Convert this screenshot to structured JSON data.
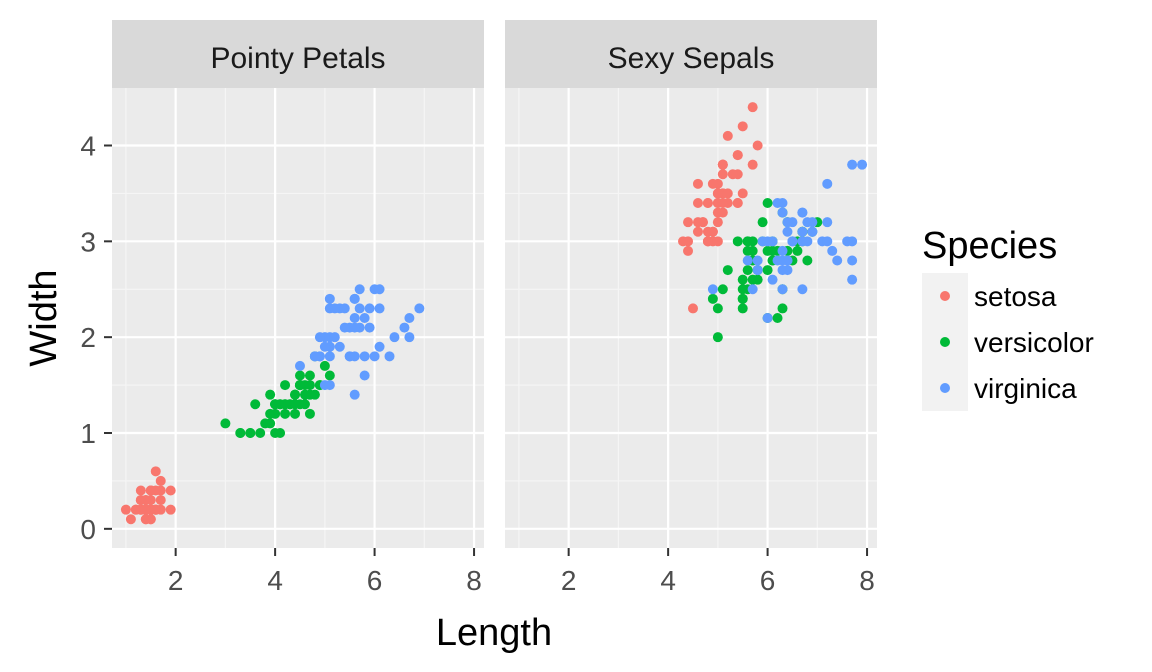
{
  "chart_data": {
    "type": "scatter",
    "xlabel": "Length",
    "ylabel": "Width",
    "xlim": [
      0.72,
      8.2
    ],
    "ylim": [
      -0.2,
      4.6
    ],
    "x_ticks": [
      2,
      4,
      6,
      8
    ],
    "y_ticks": [
      0,
      1,
      2,
      3,
      4
    ],
    "grid": true,
    "legend": {
      "title": "Species",
      "position": "right",
      "entries": [
        {
          "label": "setosa",
          "color": "#F8766D"
        },
        {
          "label": "versicolor",
          "color": "#00BA38"
        },
        {
          "label": "virginica",
          "color": "#619CFF"
        }
      ]
    },
    "panels": [
      {
        "label": "Pointy Petals",
        "series": [
          {
            "name": "setosa",
            "x": [
              1.4,
              1.4,
              1.3,
              1.5,
              1.4,
              1.7,
              1.4,
              1.5,
              1.4,
              1.5,
              1.5,
              1.6,
              1.4,
              1.1,
              1.2,
              1.5,
              1.3,
              1.4,
              1.7,
              1.5,
              1.7,
              1.5,
              1.0,
              1.7,
              1.9,
              1.6,
              1.6,
              1.5,
              1.4,
              1.6,
              1.6,
              1.5,
              1.5,
              1.4,
              1.5,
              1.2,
              1.3,
              1.4,
              1.3,
              1.5,
              1.3,
              1.3,
              1.3,
              1.6,
              1.9,
              1.4,
              1.6,
              1.4,
              1.5,
              1.4
            ],
            "y": [
              0.2,
              0.2,
              0.2,
              0.2,
              0.2,
              0.4,
              0.3,
              0.2,
              0.2,
              0.1,
              0.2,
              0.2,
              0.1,
              0.1,
              0.2,
              0.4,
              0.4,
              0.3,
              0.3,
              0.3,
              0.2,
              0.4,
              0.2,
              0.5,
              0.2,
              0.2,
              0.4,
              0.2,
              0.2,
              0.2,
              0.2,
              0.4,
              0.1,
              0.2,
              0.2,
              0.2,
              0.2,
              0.1,
              0.2,
              0.2,
              0.3,
              0.3,
              0.2,
              0.6,
              0.4,
              0.3,
              0.2,
              0.2,
              0.2,
              0.2
            ]
          },
          {
            "name": "versicolor",
            "x": [
              4.7,
              4.5,
              4.9,
              4.0,
              4.6,
              4.5,
              4.7,
              3.3,
              4.6,
              3.9,
              3.5,
              4.2,
              4.0,
              4.7,
              3.6,
              4.4,
              4.5,
              4.1,
              4.5,
              3.9,
              4.8,
              4.0,
              4.9,
              4.7,
              4.3,
              4.4,
              4.8,
              5.0,
              4.5,
              3.5,
              3.8,
              3.7,
              3.9,
              5.1,
              4.5,
              4.5,
              4.7,
              4.4,
              4.1,
              4.0,
              4.4,
              4.6,
              4.0,
              3.3,
              4.2,
              4.2,
              4.2,
              4.3,
              3.0,
              4.1
            ],
            "y": [
              1.4,
              1.5,
              1.5,
              1.3,
              1.5,
              1.3,
              1.6,
              1.0,
              1.3,
              1.4,
              1.0,
              1.5,
              1.0,
              1.4,
              1.3,
              1.4,
              1.5,
              1.0,
              1.5,
              1.1,
              1.8,
              1.3,
              1.5,
              1.2,
              1.3,
              1.4,
              1.4,
              1.7,
              1.5,
              1.0,
              1.1,
              1.0,
              1.2,
              1.6,
              1.5,
              1.6,
              1.5,
              1.3,
              1.3,
              1.3,
              1.2,
              1.4,
              1.2,
              1.0,
              1.3,
              1.2,
              1.3,
              1.3,
              1.1,
              1.3
            ]
          },
          {
            "name": "virginica",
            "x": [
              6.0,
              5.1,
              5.9,
              5.6,
              5.8,
              6.6,
              4.5,
              6.3,
              5.8,
              6.1,
              5.1,
              5.3,
              5.5,
              5.0,
              5.1,
              5.3,
              5.5,
              6.7,
              6.9,
              5.0,
              5.7,
              4.9,
              6.7,
              4.9,
              5.7,
              6.0,
              4.8,
              4.9,
              5.6,
              5.8,
              6.1,
              6.4,
              5.6,
              5.1,
              5.6,
              6.1,
              5.6,
              5.5,
              4.8,
              5.4,
              5.6,
              5.1,
              5.1,
              5.9,
              5.7,
              5.2,
              5.0,
              5.2,
              5.4,
              5.1
            ],
            "y": [
              2.5,
              1.9,
              2.1,
              1.8,
              2.2,
              2.1,
              1.7,
              1.8,
              1.8,
              2.5,
              2.0,
              1.9,
              2.1,
              2.0,
              2.4,
              2.3,
              1.8,
              2.2,
              2.3,
              1.5,
              2.3,
              2.0,
              2.0,
              1.8,
              2.1,
              1.8,
              1.8,
              1.8,
              2.1,
              1.6,
              1.9,
              2.0,
              2.2,
              1.5,
              1.4,
              2.3,
              2.4,
              1.8,
              1.8,
              2.1,
              2.4,
              2.3,
              1.9,
              2.3,
              2.5,
              2.3,
              1.9,
              2.0,
              2.3,
              1.8
            ]
          }
        ]
      },
      {
        "label": "Sexy Sepals",
        "series": [
          {
            "name": "setosa",
            "x": [
              5.1,
              4.9,
              4.7,
              4.6,
              5.0,
              5.4,
              4.6,
              5.0,
              4.4,
              4.9,
              5.4,
              4.8,
              4.8,
              4.3,
              5.8,
              5.7,
              5.4,
              5.1,
              5.7,
              5.1,
              5.4,
              5.1,
              4.6,
              5.1,
              4.8,
              5.0,
              5.0,
              5.2,
              5.2,
              4.7,
              4.8,
              5.4,
              5.2,
              5.5,
              4.9,
              5.0,
              5.5,
              4.9,
              4.4,
              5.1,
              5.0,
              4.5,
              4.4,
              5.0,
              5.1,
              4.8,
              5.1,
              4.6,
              5.3,
              5.0
            ],
            "y": [
              3.5,
              3.0,
              3.2,
              3.1,
              3.6,
              3.9,
              3.4,
              3.4,
              2.9,
              3.1,
              3.7,
              3.4,
              3.0,
              3.0,
              4.0,
              4.4,
              3.9,
              3.5,
              3.8,
              3.8,
              3.4,
              3.7,
              3.6,
              3.3,
              3.4,
              3.0,
              3.4,
              3.5,
              3.4,
              3.2,
              3.1,
              3.4,
              4.1,
              4.2,
              3.1,
              3.2,
              3.5,
              3.6,
              3.0,
              3.4,
              3.5,
              2.3,
              3.2,
              3.5,
              3.8,
              3.0,
              3.8,
              3.2,
              3.7,
              3.3
            ]
          },
          {
            "name": "versicolor",
            "x": [
              7.0,
              6.4,
              6.9,
              5.5,
              6.5,
              5.7,
              6.3,
              4.9,
              6.6,
              5.2,
              5.0,
              5.9,
              6.0,
              6.1,
              5.6,
              6.7,
              5.6,
              5.8,
              6.2,
              5.6,
              5.9,
              6.1,
              6.3,
              6.1,
              6.4,
              6.6,
              6.8,
              6.7,
              6.0,
              5.7,
              5.5,
              5.5,
              5.8,
              6.0,
              5.4,
              6.0,
              6.7,
              6.3,
              5.6,
              5.5,
              5.5,
              6.1,
              5.8,
              5.0,
              5.6,
              5.7,
              5.7,
              6.2,
              5.1,
              5.7
            ],
            "y": [
              3.2,
              3.2,
              3.1,
              2.3,
              2.8,
              2.8,
              3.3,
              2.4,
              2.9,
              2.7,
              2.0,
              3.0,
              2.2,
              2.9,
              2.9,
              3.1,
              3.0,
              2.7,
              2.2,
              2.5,
              3.2,
              2.8,
              2.5,
              2.8,
              2.9,
              3.0,
              2.8,
              3.0,
              2.9,
              2.6,
              2.4,
              2.4,
              2.7,
              2.7,
              3.0,
              3.4,
              3.1,
              2.3,
              3.0,
              2.5,
              2.6,
              3.0,
              2.6,
              2.3,
              2.7,
              3.0,
              2.9,
              2.9,
              2.5,
              2.8
            ]
          },
          {
            "name": "virginica",
            "x": [
              6.3,
              5.8,
              7.1,
              6.3,
              6.5,
              7.6,
              4.9,
              7.3,
              6.7,
              7.2,
              6.5,
              6.4,
              6.8,
              5.7,
              5.8,
              6.4,
              6.5,
              7.7,
              7.7,
              6.0,
              6.9,
              5.6,
              7.7,
              6.3,
              6.7,
              7.2,
              6.2,
              6.1,
              6.4,
              7.2,
              7.4,
              7.9,
              6.4,
              6.3,
              6.1,
              7.7,
              6.3,
              6.4,
              6.0,
              6.9,
              6.7,
              6.9,
              5.8,
              6.8,
              6.7,
              6.7,
              6.3,
              6.5,
              6.2,
              5.9
            ],
            "y": [
              3.3,
              2.7,
              3.0,
              2.9,
              3.0,
              3.0,
              2.5,
              2.9,
              2.5,
              3.6,
              3.2,
              2.7,
              3.0,
              2.5,
              2.8,
              3.2,
              3.0,
              3.8,
              2.6,
              2.2,
              3.2,
              2.8,
              2.8,
              2.7,
              3.3,
              3.2,
              2.8,
              3.0,
              2.8,
              3.0,
              2.8,
              3.8,
              2.8,
              2.8,
              2.6,
              3.0,
              3.4,
              3.1,
              3.0,
              3.1,
              3.1,
              3.1,
              2.7,
              3.2,
              3.3,
              3.0,
              2.5,
              3.0,
              3.4,
              3.0
            ]
          }
        ]
      }
    ]
  }
}
